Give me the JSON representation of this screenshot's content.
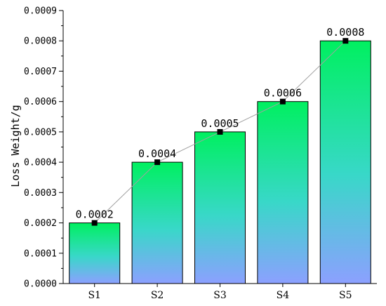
{
  "chart_data": {
    "type": "bar",
    "categories": [
      "S1",
      "S2",
      "S3",
      "S4",
      "S5"
    ],
    "values": [
      0.0002,
      0.0004,
      0.0005,
      0.0006,
      0.0008
    ],
    "data_labels": [
      "0.0002",
      "0.0004",
      "0.0005",
      "0.0006",
      "0.0008"
    ],
    "ylabel": "Loss Weight/g",
    "xlabel": "",
    "ylim": [
      0,
      0.0009
    ],
    "yticks": [
      0,
      0.0001,
      0.0002,
      0.0003,
      0.0004,
      0.0005,
      0.0006,
      0.0007,
      0.0008,
      0.0009
    ],
    "ytick_labels": [
      "0.0000",
      "0.0001",
      "0.0002",
      "0.0003",
      "0.0004",
      "0.0005",
      "0.0006",
      "0.0007",
      "0.0008",
      "0.0009"
    ],
    "overlay_line": true,
    "grid": false,
    "colors": {
      "bar_top": "#00f060",
      "bar_mid": "#38d8c8",
      "bar_bottom": "#8ca0ff",
      "bar_edge": "#000000",
      "line": "#a0a0a0",
      "marker": "#000000"
    }
  }
}
